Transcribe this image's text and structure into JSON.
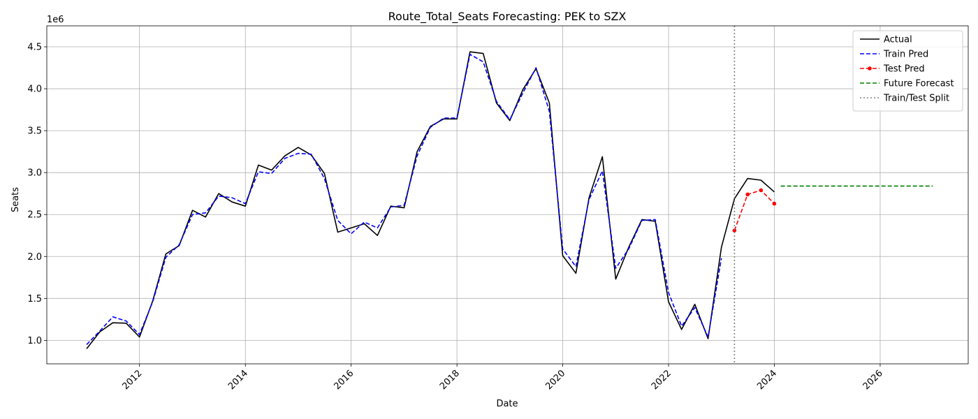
{
  "chart_data": {
    "type": "line",
    "title": "Route_Total_Seats Forecasting: PEK to SZX",
    "xlabel": "Date",
    "ylabel": "Seats",
    "y_offset_label": "1e6",
    "xlim": [
      "2010-04-01",
      "2027-09-01"
    ],
    "ylim": [
      720000,
      4750000
    ],
    "grid": true,
    "legend_position": "top-right",
    "x_ticks": [
      "2012",
      "2014",
      "2016",
      "2018",
      "2020",
      "2022",
      "2024",
      "2026"
    ],
    "y_ticks": [
      {
        "value": 1000000,
        "label": "1.0"
      },
      {
        "value": 1500000,
        "label": "1.5"
      },
      {
        "value": 2000000,
        "label": "2.0"
      },
      {
        "value": 2500000,
        "label": "2.5"
      },
      {
        "value": 3000000,
        "label": "3.0"
      },
      {
        "value": 3500000,
        "label": "3.5"
      },
      {
        "value": 4000000,
        "label": "4.0"
      },
      {
        "value": 4500000,
        "label": "4.5"
      }
    ],
    "train_test_split": "2023-04-01",
    "series": [
      {
        "name": "Actual",
        "color": "#000000",
        "style": "solid",
        "x": [
          "2011-01-01",
          "2011-04-01",
          "2011-07-01",
          "2011-10-01",
          "2012-01-01",
          "2012-04-01",
          "2012-07-01",
          "2012-10-01",
          "2013-01-01",
          "2013-04-01",
          "2013-07-01",
          "2013-10-01",
          "2014-01-01",
          "2014-04-01",
          "2014-07-01",
          "2014-10-01",
          "2015-01-01",
          "2015-04-01",
          "2015-07-01",
          "2015-10-01",
          "2016-01-01",
          "2016-04-01",
          "2016-07-01",
          "2016-10-01",
          "2017-01-01",
          "2017-04-01",
          "2017-07-01",
          "2017-10-01",
          "2018-01-01",
          "2018-04-01",
          "2018-07-01",
          "2018-10-01",
          "2019-01-01",
          "2019-04-01",
          "2019-07-01",
          "2019-10-01",
          "2020-01-01",
          "2020-04-01",
          "2020-07-01",
          "2020-10-01",
          "2021-01-01",
          "2021-04-01",
          "2021-07-01",
          "2021-10-01",
          "2022-01-01",
          "2022-04-01",
          "2022-07-01",
          "2022-10-01",
          "2023-01-01",
          "2023-04-01",
          "2023-07-01",
          "2023-10-01",
          "2024-01-01"
        ],
        "values": [
          900000,
          1100000,
          1210000,
          1205000,
          1040000,
          1470000,
          2030000,
          2130000,
          2550000,
          2470000,
          2750000,
          2650000,
          2600000,
          3090000,
          3030000,
          3200000,
          3300000,
          3210000,
          2990000,
          2290000,
          2340000,
          2390000,
          2250000,
          2600000,
          2580000,
          3250000,
          3550000,
          3640000,
          3640000,
          4440000,
          4420000,
          3830000,
          3620000,
          3990000,
          4240000,
          3830000,
          2010000,
          1800000,
          2700000,
          3190000,
          1730000,
          2110000,
          2440000,
          2420000,
          1460000,
          1130000,
          1430000,
          1020000,
          2110000,
          2690000,
          2930000,
          2910000,
          2770000
        ]
      },
      {
        "name": "Train Pred",
        "color": "#0000ff",
        "style": "dashed",
        "x": [
          "2011-01-01",
          "2011-04-01",
          "2011-07-01",
          "2011-10-01",
          "2012-01-01",
          "2012-04-01",
          "2012-07-01",
          "2012-10-01",
          "2013-01-01",
          "2013-04-01",
          "2013-07-01",
          "2013-10-01",
          "2014-01-01",
          "2014-04-01",
          "2014-07-01",
          "2014-10-01",
          "2015-01-01",
          "2015-04-01",
          "2015-07-01",
          "2015-10-01",
          "2016-01-01",
          "2016-04-01",
          "2016-07-01",
          "2016-10-01",
          "2017-01-01",
          "2017-04-01",
          "2017-07-01",
          "2017-10-01",
          "2018-01-01",
          "2018-04-01",
          "2018-07-01",
          "2018-10-01",
          "2019-01-01",
          "2019-04-01",
          "2019-07-01",
          "2019-10-01",
          "2020-01-01",
          "2020-04-01",
          "2020-07-01",
          "2020-10-01",
          "2021-01-01",
          "2021-04-01",
          "2021-07-01",
          "2021-10-01",
          "2022-01-01",
          "2022-04-01",
          "2022-07-01",
          "2022-10-01",
          "2023-01-01"
        ],
        "values": [
          950000,
          1110000,
          1280000,
          1230000,
          1070000,
          1460000,
          1990000,
          2140000,
          2500000,
          2520000,
          2720000,
          2700000,
          2630000,
          3010000,
          2990000,
          3170000,
          3230000,
          3220000,
          2930000,
          2430000,
          2270000,
          2410000,
          2340000,
          2590000,
          2610000,
          3200000,
          3540000,
          3650000,
          3650000,
          4410000,
          4320000,
          3850000,
          3630000,
          3950000,
          4250000,
          3730000,
          2090000,
          1880000,
          2680000,
          3020000,
          1860000,
          2090000,
          2430000,
          2440000,
          1570000,
          1170000,
          1390000,
          1040000,
          1980000
        ]
      },
      {
        "name": "Test Pred",
        "color": "#ff0000",
        "style": "dashed-markers",
        "x": [
          "2023-04-01",
          "2023-07-01",
          "2023-10-01",
          "2024-01-01"
        ],
        "values": [
          2310000,
          2740000,
          2790000,
          2630000
        ]
      },
      {
        "name": "Future Forecast",
        "color": "#008000",
        "style": "dashed",
        "x": [
          "2024-02-15",
          "2026-12-31"
        ],
        "values": [
          2840000,
          2840000
        ]
      },
      {
        "name": "Train/Test Split",
        "color": "#808080",
        "style": "dotted"
      }
    ]
  }
}
